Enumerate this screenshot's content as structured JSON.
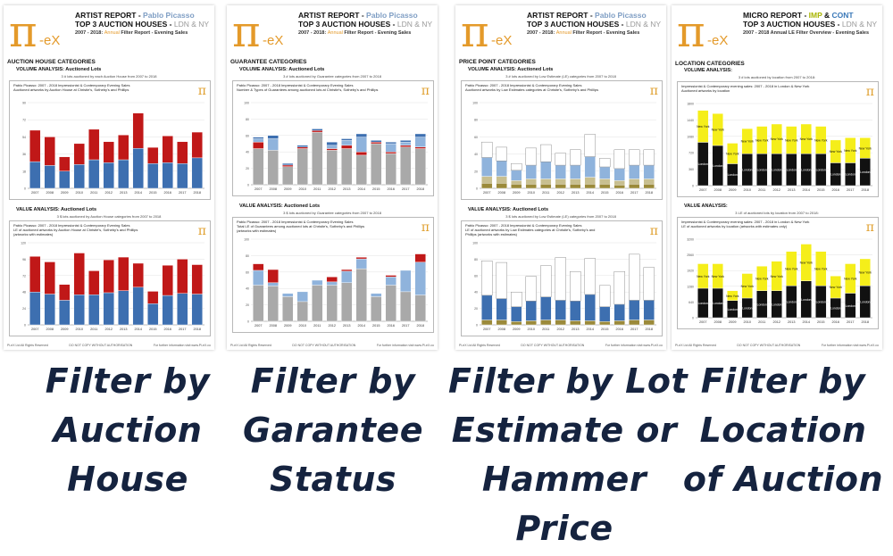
{
  "reports": [
    {
      "key": "auction-house",
      "title_prefix": "ARTIST REPORT - ",
      "title_highlight": "Pablo Picasso",
      "subtitle_main": "TOP 3 AUCTION HOUSES - ",
      "subtitle_highlight": "LDN & NY",
      "period_prefix": "2007 - 2018: ",
      "period_highlight": "Annual",
      "period_suffix": " Filter Report - Evening Sales",
      "category": "AUCTION HOUSE CATEGORIES",
      "volume_label": "VOLUME ANALYSIS:  Auctioned Lots",
      "volume_note": "3 # lots auctioned by each Auction House from 2007 to 2018",
      "volume_caption": "Pablo Picasso: 2007 - 2018 Impressionist & Contemporary Evening Sales\nAuctioned artworks by Auction House at Christie's, Sotheby's and Phillips",
      "value_label": "VALUE ANALYSIS:  Auctioned Lots",
      "value_note": "3 $ lots auctioned by Auction House categories from 2007 to 2018",
      "value_caption": "Pablo Picasso: 2007 - 2018 Impressionist & Contemporary Evening Sales\nLE of auctioned artworks by Auction House at Christie's, Sotheby's and Phillips\n(artworks with estimates)",
      "footer_left": "Pi-eX Ltd All Rights Reserved",
      "footer_mid": "DO NOT COPY WITHOUT AUTHORISATION",
      "footer_right": "For further information visit www.Pi-eX.co"
    },
    {
      "key": "guarantee",
      "title_prefix": "ARTIST REPORT - ",
      "title_highlight": "Pablo Picasso",
      "subtitle_main": "TOP 3 AUCTION HOUSES - ",
      "subtitle_highlight": "LDN & NY",
      "period_prefix": "2007 - 2018: ",
      "period_highlight": "Annual",
      "period_suffix": " Filter Report - Evening Sales",
      "category": "GUARANTEE CATEGORIES",
      "volume_label": "VOLUME ANALYSIS:  Auctioned Lots",
      "volume_note": "3 # lots auctioned by Guarantee categories from 2007 to 2018",
      "volume_caption": "Pablo Picasso: 2007 - 2018 Impressionist & Contemporary Evening Sales\nNumber & Types of Guarantees among auctioned lots at Christie's, Sotheby's and Phillips",
      "value_label": "VALUE ANALYSIS:  Auctioned Lots",
      "value_note": "3 $ lots auctioned by Guarantee categories from 2007 to 2018",
      "value_caption": "Pablo Picasso: 2007 - 2018 Impressionist & Contemporary Evening Sales\nTotal LE of Guarantees among auctioned lots at Christie's, Sotheby's and Phillips\n(artworks with estimates)",
      "footer_left": "Pi-eX Ltd All Rights Reserved",
      "footer_mid": "DO NOT COPY WITHOUT AUTHORISATION",
      "footer_right": "For further information visit www.Pi-eX.co"
    },
    {
      "key": "price-point",
      "title_prefix": "ARTIST REPORT - ",
      "title_highlight": "Pablo Picasso",
      "subtitle_main": "TOP 3 AUCTION HOUSES - ",
      "subtitle_highlight": "LDN & NY",
      "period_prefix": "2007 - 2018: ",
      "period_highlight": "Annual",
      "period_suffix": " Filter Report - Evening Sales",
      "category": "PRICE POINT CATEGORIES",
      "volume_label": "VOLUME ANALYSIS:  Auctioned Lots",
      "volume_note": "3 # lots auctioned by Low Estimate (LE) categories from 2007 to 2018",
      "volume_caption": "Pablo Picasso: 2007 - 2018 Impressionist & Contemporary Evening Sales\nAuctioned artworks by Low Estimates categories at Christie's, Sotheby's and Phillips",
      "value_label": "VALUE ANALYSIS:  Auctioned Lots",
      "value_note": "3 $ lots auctioned by Low Estimate (LE) categories from 2007 to 2018",
      "value_caption": "Pablo Picasso: 2007 - 2018 Impressionist & Contemporary Evening Sales\nLE of auctioned artworks by Low Estimates categories at Christie's, Sotheby's and\nPhillips (artworks with estimates)",
      "footer_left": "Pi-eX Ltd All Rights Reserved",
      "footer_mid": "DO NOT COPY WITHOUT AUTHORISATION",
      "footer_right": "For further information visit www.Pi-eX.co"
    },
    {
      "key": "location",
      "title_prefix": "MICRO REPORT - ",
      "title_imp": "IMP",
      "title_amp": " & ",
      "title_cont": "CONT",
      "subtitle_main": "TOP 3 AUCTION HOUSES - ",
      "subtitle_highlight": "LDN & NY",
      "period_prefix": "2007 - 2018 Annual LE Filter Overview - Evening Sales",
      "category": "LOCATION CATEGORIES",
      "volume_label": "VOLUME ANALYSIS:",
      "volume_note": "3 # lots auctioned by location from 2007 to 2018:",
      "volume_caption": "Impressionist & Contemporary evening sales: 2007 - 2018 in London & New York\nAuctioned artworks by location",
      "value_label": "VALUE ANALYSIS:",
      "value_note": "3 LE of auctioned lots by location from 2007 to 2018:",
      "value_caption": "Impressionist & Contemporary evening sales: 2007 - 2018 in London & New York\nLE of auctioned artworks by location (artworks with estimates only)",
      "footer_left": "Pi-eX Ltd All Rights Reserved",
      "footer_mid": "DO NOT COPY WITHOUT AUTHORISATION",
      "footer_right": "For further information visit www.Pi-eX.co"
    }
  ],
  "logo_text": "π",
  "logo_suffix": "-eX",
  "years": [
    "2007",
    "2008",
    "2009",
    "2010",
    "2011",
    "2012",
    "2013",
    "2014",
    "2015",
    "2016",
    "2017",
    "2018"
  ],
  "colors": {
    "red": "#c01818",
    "blue": "#3d6fb0",
    "lightblue": "#8fb3dc",
    "grey": "#a9a9a9",
    "olive": "#9b8a3a",
    "yellow": "#f5ee1a",
    "black": "#111111",
    "navy": "#15233f",
    "orange": "#e49a2a"
  },
  "captions": [
    {
      "lines": [
        "Filter by",
        "Auction",
        "House"
      ]
    },
    {
      "lines": [
        "Filter by",
        "Garantee",
        "Status"
      ]
    },
    {
      "lines": [
        "Filter by Lot",
        "Estimate or",
        "Hammer",
        "Price"
      ]
    },
    {
      "lines": [
        "Filter by",
        "Location",
        "of Auction"
      ]
    }
  ],
  "chart_data": [
    {
      "type": "bar",
      "title": "",
      "categories": [
        "2007",
        "2008",
        "2009",
        "2010",
        "2011",
        "2012",
        "2013",
        "2014",
        "2015",
        "2016",
        "2017",
        "2018"
      ],
      "series": [
        {
          "values": [
            28,
            24,
            18,
            25,
            30,
            27,
            30,
            42,
            26,
            27,
            26,
            32
          ]
        },
        {
          "values": [
            33,
            30,
            15,
            22,
            32,
            22,
            26,
            37,
            17,
            28,
            23,
            27
          ]
        }
      ],
      "ylim": [
        0,
        90
      ],
      "stacked": true
    },
    {
      "type": "bar",
      "title": "",
      "categories": [
        "2007",
        "2008",
        "2009",
        "2010",
        "2011",
        "2012",
        "2013",
        "2014",
        "2015",
        "2016",
        "2017",
        "2018"
      ],
      "series": [
        {
          "values": [
            48,
            45,
            36,
            44,
            44,
            47,
            50,
            55,
            31,
            43,
            46,
            45
          ]
        },
        {
          "values": [
            52,
            47,
            23,
            61,
            35,
            48,
            49,
            35,
            18,
            44,
            50,
            43
          ]
        }
      ],
      "ylim": [
        0,
        120
      ],
      "stacked": true
    },
    {
      "type": "bar",
      "title": "",
      "categories": [
        "2007",
        "2008",
        "2009",
        "2010",
        "2011",
        "2012",
        "2013",
        "2014",
        "2015",
        "2016",
        "2017",
        "2018"
      ],
      "series": [
        {
          "values": [
            44,
            42,
            22,
            44,
            64,
            42,
            44,
            36,
            50,
            38,
            46,
            44
          ]
        },
        {
          "values": [
            8,
            0,
            2,
            2,
            2,
            2,
            4,
            4,
            2,
            2,
            2,
            2
          ]
        },
        {
          "values": [
            4,
            14,
            0,
            0,
            0,
            4,
            6,
            18,
            0,
            10,
            4,
            12
          ]
        },
        {
          "values": [
            2,
            4,
            2,
            2,
            2,
            4,
            2,
            4,
            2,
            2,
            2,
            4
          ]
        }
      ],
      "ylim": [
        0,
        100
      ],
      "stacked": true
    },
    {
      "type": "bar",
      "title": "",
      "categories": [
        "2007",
        "2008",
        "2009",
        "2010",
        "2011",
        "2012",
        "2013",
        "2014",
        "2015",
        "2016",
        "2017",
        "2018"
      ],
      "series": [
        {
          "values": [
            44,
            43,
            30,
            24,
            44,
            44,
            47,
            64,
            30,
            44,
            36,
            32
          ]
        },
        {
          "values": [
            18,
            4,
            4,
            12,
            6,
            4,
            14,
            12,
            4,
            10,
            26,
            40
          ]
        },
        {
          "values": [
            8,
            16,
            0,
            0,
            0,
            6,
            2,
            2,
            0,
            2,
            0,
            10
          ]
        }
      ],
      "ylim": [
        0,
        100
      ],
      "stacked": true
    },
    {
      "type": "bar",
      "title": "",
      "categories": [
        "2007",
        "2008",
        "2009",
        "2010",
        "2011",
        "2012",
        "2013",
        "2014",
        "2015",
        "2016",
        "2017",
        "2018"
      ],
      "series": [
        {
          "values": [
            6,
            6,
            5,
            5,
            5,
            5,
            5,
            5,
            5,
            4,
            5,
            5
          ]
        },
        {
          "values": [
            8,
            8,
            4,
            6,
            6,
            6,
            6,
            8,
            6,
            5,
            6,
            6
          ]
        },
        {
          "values": [
            22,
            18,
            12,
            16,
            20,
            16,
            16,
            24,
            14,
            14,
            16,
            16
          ]
        },
        {
          "values": [
            18,
            16,
            8,
            20,
            20,
            14,
            18,
            26,
            10,
            22,
            18,
            18
          ]
        }
      ],
      "ylim": [
        0,
        100
      ],
      "stacked": true
    },
    {
      "type": "bar",
      "title": "",
      "categories": [
        "2007",
        "2008",
        "2009",
        "2010",
        "2011",
        "2012",
        "2013",
        "2014",
        "2015",
        "2016",
        "2017",
        "2018"
      ],
      "series": [
        {
          "values": [
            6,
            6,
            4,
            5,
            6,
            6,
            5,
            5,
            4,
            5,
            6,
            6
          ]
        },
        {
          "values": [
            30,
            26,
            18,
            24,
            28,
            24,
            24,
            32,
            18,
            20,
            24,
            24
          ]
        },
        {
          "values": [
            42,
            44,
            18,
            30,
            38,
            52,
            36,
            44,
            26,
            40,
            56,
            40
          ]
        }
      ],
      "ylim": [
        0,
        100
      ],
      "stacked": true
    },
    {
      "type": "bar",
      "title": "",
      "categories": [
        "2007",
        "2008",
        "2009",
        "2010",
        "2011",
        "2012",
        "2013",
        "2014",
        "2015",
        "2016",
        "2017",
        "2018"
      ],
      "series": [
        {
          "name": "London",
          "values": [
            950,
            880,
            480,
            700,
            700,
            700,
            700,
            700,
            700,
            500,
            500,
            600
          ]
        },
        {
          "name": "New York",
          "values": [
            700,
            700,
            450,
            550,
            600,
            650,
            600,
            650,
            600,
            500,
            550,
            450
          ]
        }
      ],
      "ylim": [
        0,
        1800
      ],
      "stacked": true
    },
    {
      "type": "bar",
      "title": "",
      "categories": [
        "2007",
        "2008",
        "2009",
        "2010",
        "2011",
        "2012",
        "2013",
        "2014",
        "2015",
        "2016",
        "2017",
        "2018"
      ],
      "series": [
        {
          "name": "London",
          "values": [
            1200,
            1200,
            700,
            800,
            1100,
            1100,
            1300,
            1500,
            1300,
            800,
            1000,
            1300
          ]
        },
        {
          "name": "New York",
          "values": [
            1000,
            1000,
            400,
            1000,
            1000,
            1200,
            1400,
            1500,
            1400,
            900,
            1200,
            1100
          ]
        }
      ],
      "ylim": [
        0,
        3200
      ],
      "stacked": true
    }
  ]
}
